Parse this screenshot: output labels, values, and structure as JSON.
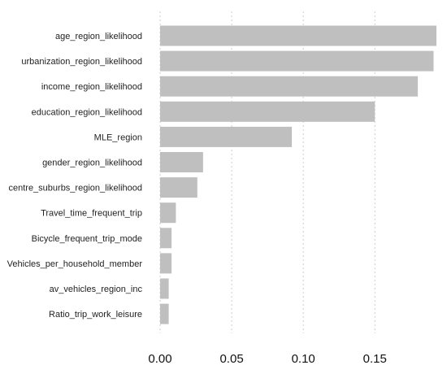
{
  "chart_data": {
    "type": "bar",
    "orientation": "horizontal",
    "categories": [
      "age_region_likelihood",
      "urbanization_region_likelihood",
      "income_region_likelihood",
      "education_region_likelihood",
      "MLE_region",
      "gender_region_likelihood",
      "centre_suburbs_region_likelihood",
      "Travel_time_frequent_trip",
      "Bicycle_frequent_trip_mode",
      "Vehicles_per_household_member",
      "av_vehicles_region_inc",
      "Ratio_trip_work_leisure"
    ],
    "values": [
      0.193,
      0.191,
      0.18,
      0.15,
      0.092,
      0.03,
      0.026,
      0.011,
      0.008,
      0.008,
      0.006,
      0.006
    ],
    "xlim": [
      0,
      0.193
    ],
    "xticks": [
      0.0,
      0.05,
      0.1,
      0.15
    ],
    "xtick_labels": [
      "0.00",
      "0.05",
      "0.10",
      "0.15"
    ],
    "title": "",
    "xlabel": "",
    "ylabel": "",
    "grid": "vertical dotted",
    "legend": "none",
    "bar_color": "#bfbfbf"
  }
}
